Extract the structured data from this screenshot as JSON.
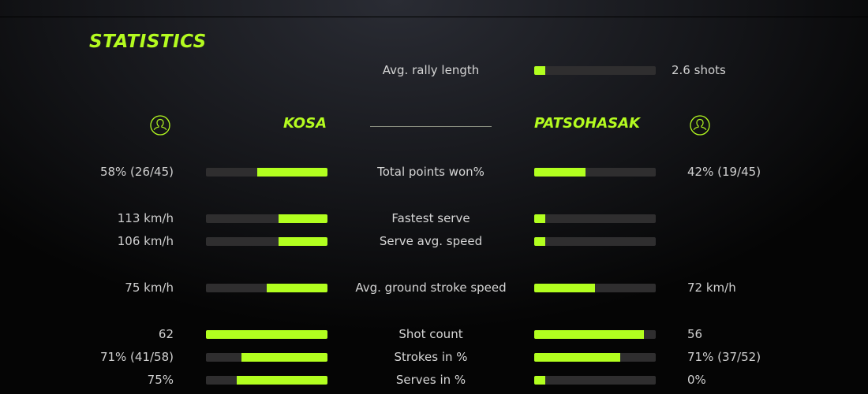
{
  "title": "STATISTICS",
  "accent_color": "#b2ff1f",
  "rally": {
    "label": "Avg. rally length",
    "value": "2.6 shots",
    "fill": 0.09
  },
  "players": {
    "left": {
      "name": "KOSA",
      "icon": "user-circle-icon"
    },
    "right": {
      "name": "PATSOHASAK",
      "icon": "user-circle-icon"
    }
  },
  "rows": [
    {
      "label": "Total points won%",
      "left": "58% (26/45)",
      "right": "42% (19/45)",
      "left_fill": 0.58,
      "right_fill": 0.42
    },
    {
      "label": "Fastest serve",
      "left": "113 km/h",
      "right": "",
      "left_fill": 0.4,
      "right_fill": 0.09
    },
    {
      "label": "Serve avg. speed",
      "left": "106 km/h",
      "right": "",
      "left_fill": 0.4,
      "right_fill": 0.09
    },
    {
      "label": "Avg. ground stroke speed",
      "left": "75 km/h",
      "right": "72 km/h",
      "left_fill": 0.5,
      "right_fill": 0.5
    },
    {
      "label": "Shot count",
      "left": "62",
      "right": "56",
      "left_fill": 1.0,
      "right_fill": 0.9
    },
    {
      "label": "Strokes in %",
      "left": "71% (41/58)",
      "right": "71% (37/52)",
      "left_fill": 0.71,
      "right_fill": 0.71
    },
    {
      "label": "Serves in %",
      "left": "75%",
      "right": "0%",
      "left_fill": 0.75,
      "right_fill": 0.09
    }
  ]
}
